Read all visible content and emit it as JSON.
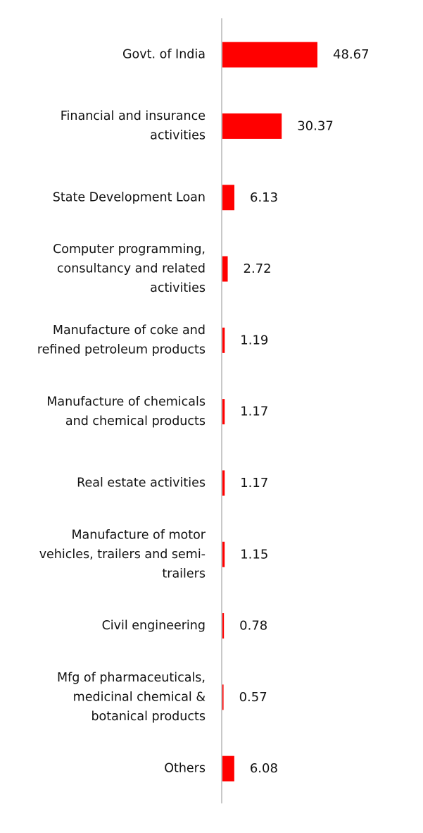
{
  "chart_data": {
    "type": "bar",
    "orientation": "horizontal",
    "title": "",
    "xlabel": "",
    "ylabel": "",
    "grid": false,
    "legend": "none",
    "bar_color": "#ff0000",
    "axis_color": "#c8c8c8",
    "xlim": [
      0,
      50
    ],
    "categories": [
      [
        "Govt. of India"
      ],
      [
        "Financial and insurance",
        "activities"
      ],
      [
        "State Development Loan"
      ],
      [
        "Computer programming,",
        "consultancy and related",
        "activities"
      ],
      [
        "Manufacture of coke and",
        "refined petroleum products"
      ],
      [
        "Manufacture of chemicals",
        "and chemical products"
      ],
      [
        "Real estate activities"
      ],
      [
        "Manufacture of motor",
        "vehicles, trailers and semi-",
        "trailers"
      ],
      [
        "Civil engineering"
      ],
      [
        "Mfg of pharmaceuticals,",
        "medicinal chemical &",
        "botanical products"
      ],
      [
        "Others"
      ]
    ],
    "values": [
      48.67,
      30.37,
      6.13,
      2.72,
      1.19,
      1.17,
      1.17,
      1.15,
      0.78,
      0.57,
      6.08
    ],
    "value_labels": [
      "48.67",
      "30.37",
      "6.13",
      "2.72",
      "1.19",
      "1.17",
      "1.17",
      "1.15",
      "0.78",
      "0.57",
      "6.08"
    ]
  }
}
